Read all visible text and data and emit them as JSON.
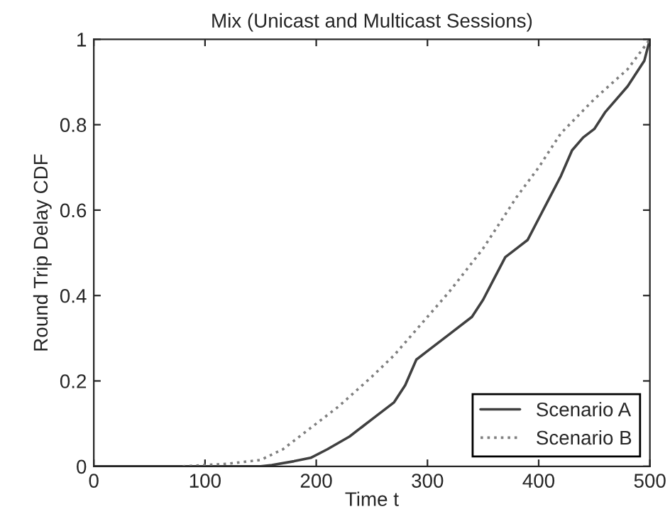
{
  "chart_data": {
    "type": "line",
    "title": "Mix (Unicast and Multicast Sessions)",
    "xlabel": "Time t",
    "ylabel": "Round Trip Delay CDF",
    "xlim": [
      0,
      500
    ],
    "xticks": [
      0,
      100,
      200,
      300,
      400,
      500
    ],
    "ylim": [
      0,
      1
    ],
    "yticks": [
      0,
      0.2,
      0.4,
      0.6,
      0.8,
      1
    ],
    "grid": false,
    "legend": "bottom right",
    "marker": "none",
    "series": [
      {
        "name": "Scenario A",
        "color": "#404040",
        "line_style": "solid",
        "x": [
          0,
          150,
          160,
          180,
          195,
          210,
          230,
          250,
          270,
          280,
          290,
          300,
          320,
          340,
          350,
          360,
          370,
          380,
          390,
          400,
          410,
          420,
          430,
          440,
          450,
          460,
          480,
          495,
          500
        ],
        "values": [
          0,
          0,
          0.003,
          0.012,
          0.02,
          0.04,
          0.07,
          0.11,
          0.15,
          0.19,
          0.25,
          0.27,
          0.31,
          0.35,
          0.39,
          0.44,
          0.49,
          0.51,
          0.53,
          0.58,
          0.63,
          0.68,
          0.74,
          0.77,
          0.79,
          0.83,
          0.89,
          0.95,
          1
        ]
      },
      {
        "name": "Scenario B",
        "color": "#808080",
        "line_style": "dotted",
        "x": [
          80,
          100,
          120,
          150,
          170,
          200,
          220,
          250,
          270,
          300,
          320,
          350,
          380,
          400,
          420,
          450,
          480,
          500
        ],
        "values": [
          0,
          0.003,
          0.006,
          0.015,
          0.04,
          0.1,
          0.14,
          0.21,
          0.26,
          0.35,
          0.41,
          0.51,
          0.63,
          0.7,
          0.78,
          0.86,
          0.93,
          1
        ]
      }
    ]
  }
}
